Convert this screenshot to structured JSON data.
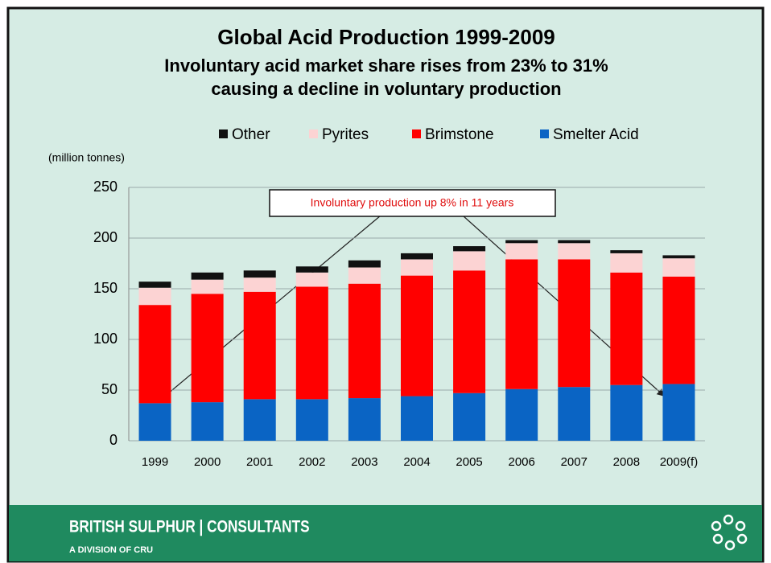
{
  "chart_data": {
    "type": "stacked_bar",
    "title": "Global Acid Production 1999-2009",
    "subtitle": [
      "Involuntary acid market share rises from 23% to 31%",
      "causing a decline in voluntary production"
    ],
    "y_label": "(million tonnes)",
    "annotation": "Involuntary production up 8% in 11 years",
    "categories": [
      "1999",
      "2000",
      "2001",
      "2002",
      "2003",
      "2004",
      "2005",
      "2006",
      "2007",
      "2008",
      "2009(f)"
    ],
    "series": [
      {
        "name": "Other",
        "color": "#111111",
        "values": [
          6,
          7,
          7,
          6,
          7,
          6,
          5,
          3,
          3,
          3,
          3
        ]
      },
      {
        "name": "Pyrites",
        "color": "#fcd3d3",
        "values": [
          17,
          14,
          14,
          14,
          16,
          16,
          19,
          16,
          16,
          19,
          18
        ]
      },
      {
        "name": "Brimstone",
        "color": "#ff0000",
        "values": [
          97,
          107,
          106,
          111,
          113,
          119,
          121,
          128,
          126,
          111,
          106
        ]
      },
      {
        "name": "Smelter Acid",
        "color": "#0a64c4",
        "values": [
          37,
          38,
          41,
          41,
          42,
          44,
          47,
          51,
          53,
          55,
          56
        ]
      }
    ],
    "ylim": [
      0,
      250
    ],
    "yticks": [
      0,
      50,
      100,
      150,
      200,
      250
    ],
    "grid": true
  },
  "footer": {
    "brand": "BRITISH SULPHUR | CONSULTANTS",
    "division": "A DIVISION OF CRU"
  }
}
